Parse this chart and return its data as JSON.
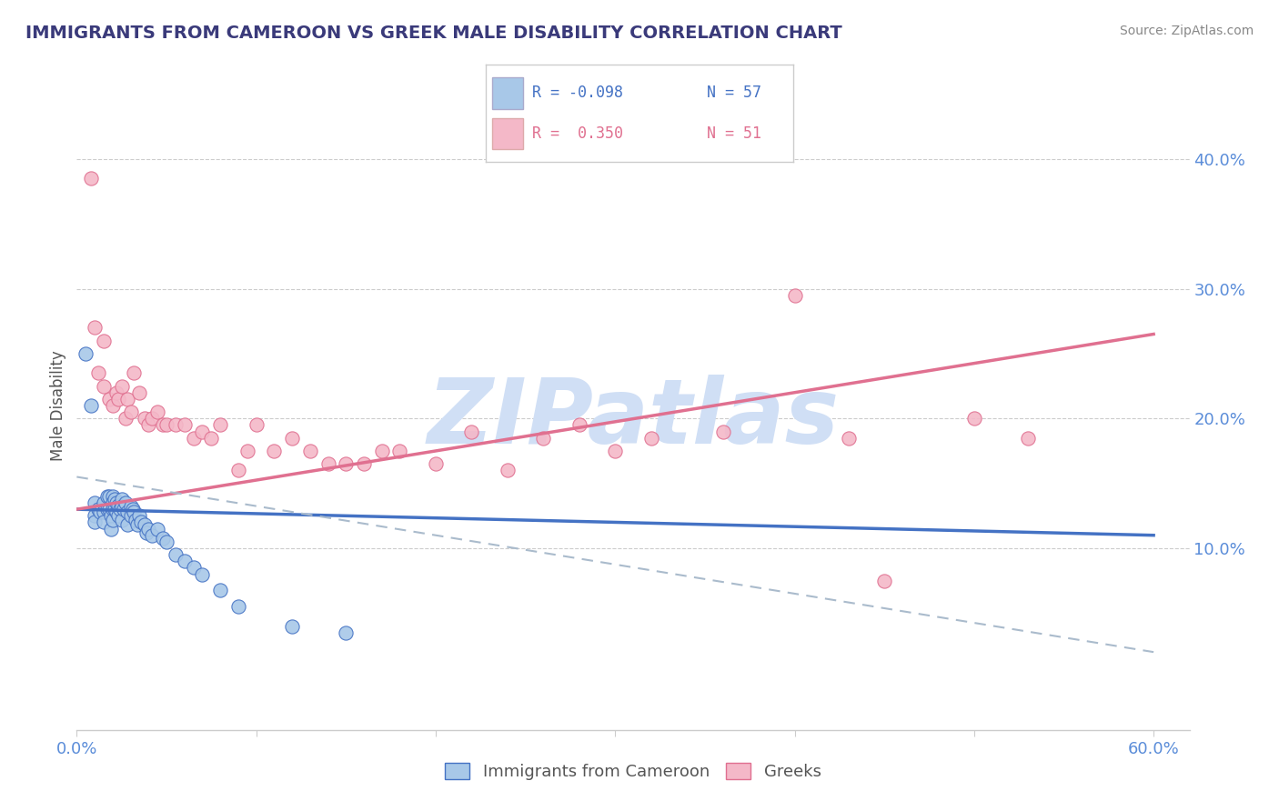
{
  "title": "IMMIGRANTS FROM CAMEROON VS GREEK MALE DISABILITY CORRELATION CHART",
  "source": "Source: ZipAtlas.com",
  "ylabel": "Male Disability",
  "xlim": [
    0.0,
    0.62
  ],
  "ylim": [
    -0.04,
    0.46
  ],
  "xticks": [
    0.0,
    0.1,
    0.2,
    0.3,
    0.4,
    0.5,
    0.6
  ],
  "xtick_labels": [
    "0.0%",
    "",
    "",
    "",
    "",
    "",
    "60.0%"
  ],
  "ytick_vals_right": [
    0.1,
    0.2,
    0.3,
    0.4
  ],
  "ytick_labels_right": [
    "10.0%",
    "20.0%",
    "30.0%",
    "40.0%"
  ],
  "color_blue": "#a8c8e8",
  "color_pink": "#f4b8c8",
  "color_blue_dark": "#4472c4",
  "color_pink_dark": "#e07090",
  "color_title": "#3a3a7a",
  "color_axis": "#5b8dd9",
  "watermark": "ZIPatlas",
  "watermark_color": "#d0dff5",
  "blue_scatter_x": [
    0.005,
    0.008,
    0.01,
    0.01,
    0.01,
    0.012,
    0.013,
    0.015,
    0.015,
    0.015,
    0.017,
    0.017,
    0.018,
    0.018,
    0.019,
    0.019,
    0.02,
    0.02,
    0.02,
    0.02,
    0.021,
    0.021,
    0.022,
    0.022,
    0.023,
    0.023,
    0.024,
    0.025,
    0.025,
    0.025,
    0.026,
    0.027,
    0.028,
    0.028,
    0.03,
    0.03,
    0.031,
    0.032,
    0.033,
    0.034,
    0.035,
    0.036,
    0.038,
    0.039,
    0.04,
    0.042,
    0.045,
    0.048,
    0.05,
    0.055,
    0.06,
    0.065,
    0.07,
    0.08,
    0.09,
    0.12,
    0.15
  ],
  "blue_scatter_y": [
    0.25,
    0.21,
    0.135,
    0.125,
    0.12,
    0.13,
    0.128,
    0.135,
    0.128,
    0.12,
    0.14,
    0.13,
    0.14,
    0.13,
    0.125,
    0.115,
    0.14,
    0.135,
    0.13,
    0.122,
    0.138,
    0.13,
    0.135,
    0.128,
    0.133,
    0.125,
    0.13,
    0.138,
    0.132,
    0.122,
    0.13,
    0.135,
    0.128,
    0.118,
    0.132,
    0.125,
    0.13,
    0.128,
    0.122,
    0.118,
    0.125,
    0.12,
    0.118,
    0.112,
    0.115,
    0.11,
    0.115,
    0.108,
    0.105,
    0.095,
    0.09,
    0.085,
    0.08,
    0.068,
    0.055,
    0.04,
    0.035
  ],
  "pink_scatter_x": [
    0.008,
    0.01,
    0.012,
    0.015,
    0.015,
    0.018,
    0.02,
    0.022,
    0.023,
    0.025,
    0.027,
    0.028,
    0.03,
    0.032,
    0.035,
    0.038,
    0.04,
    0.042,
    0.045,
    0.048,
    0.05,
    0.055,
    0.06,
    0.065,
    0.07,
    0.075,
    0.08,
    0.09,
    0.095,
    0.1,
    0.11,
    0.12,
    0.13,
    0.14,
    0.15,
    0.16,
    0.17,
    0.18,
    0.2,
    0.22,
    0.24,
    0.26,
    0.28,
    0.3,
    0.32,
    0.36,
    0.4,
    0.43,
    0.45,
    0.5,
    0.53
  ],
  "pink_scatter_y": [
    0.385,
    0.27,
    0.235,
    0.26,
    0.225,
    0.215,
    0.21,
    0.22,
    0.215,
    0.225,
    0.2,
    0.215,
    0.205,
    0.235,
    0.22,
    0.2,
    0.195,
    0.2,
    0.205,
    0.195,
    0.195,
    0.195,
    0.195,
    0.185,
    0.19,
    0.185,
    0.195,
    0.16,
    0.175,
    0.195,
    0.175,
    0.185,
    0.175,
    0.165,
    0.165,
    0.165,
    0.175,
    0.175,
    0.165,
    0.19,
    0.16,
    0.185,
    0.195,
    0.175,
    0.185,
    0.19,
    0.295,
    0.185,
    0.075,
    0.2,
    0.185
  ],
  "blue_trend_x": [
    0.0,
    0.6
  ],
  "blue_trend_y": [
    0.13,
    0.11
  ],
  "pink_trend_x": [
    0.0,
    0.6
  ],
  "pink_trend_y": [
    0.13,
    0.265
  ],
  "dashed_trend_x": [
    0.0,
    0.6
  ],
  "dashed_trend_y": [
    0.155,
    0.02
  ],
  "legend_items": [
    {
      "label": "R = -0.098  N = 57",
      "color_fill": "#a8c8e8",
      "color_text": "#4472c4"
    },
    {
      "label": "R =  0.350  N = 51",
      "color_fill": "#f4b8c8",
      "color_text": "#e07090"
    }
  ]
}
